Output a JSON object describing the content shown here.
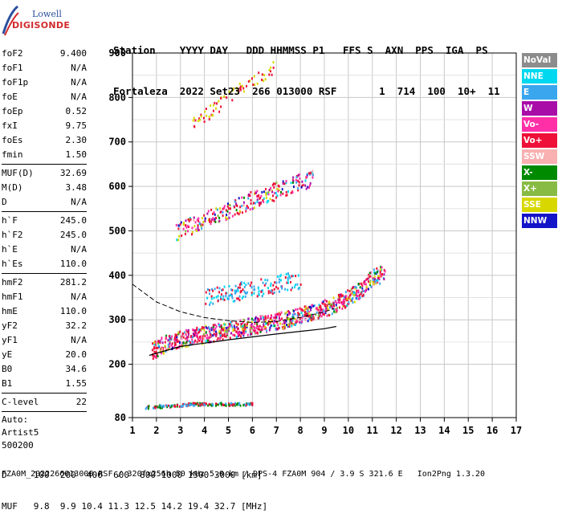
{
  "logo": {
    "line1": "Lowell",
    "line2": "DIGISONDE"
  },
  "header": {
    "line1": "Station    YYYY DAY   DDD HHMMSS P1   FFS S  AXN  PPS  IGA  PS",
    "line2": "Fortaleza  2022 Set23  266 013000 RSF       1  714  100  10+  11"
  },
  "params": [
    {
      "label": "foF2",
      "value": "9.400"
    },
    {
      "label": "foF1",
      "value": "N/A"
    },
    {
      "label": "foF1p",
      "value": "N/A"
    },
    {
      "label": "foE",
      "value": "N/A"
    },
    {
      "label": "foEp",
      "value": "0.52"
    },
    {
      "label": "fxI",
      "value": "9.75"
    },
    {
      "label": "foEs",
      "value": "2.30"
    },
    {
      "label": "fmin",
      "value": "1.50"
    }
  ],
  "params2": [
    {
      "label": "MUF(D)",
      "value": "32.69"
    },
    {
      "label": "M(D)",
      "value": "3.48"
    },
    {
      "label": "D",
      "value": "N/A"
    }
  ],
  "params3": [
    {
      "label": "h`F",
      "value": "245.0"
    },
    {
      "label": "h`F2",
      "value": "245.0"
    },
    {
      "label": "h`E",
      "value": "N/A"
    },
    {
      "label": "h`Es",
      "value": "110.0"
    }
  ],
  "params4": [
    {
      "label": "hmF2",
      "value": "281.2"
    },
    {
      "label": "hmF1",
      "value": "N/A"
    },
    {
      "label": "hmE",
      "value": "110.0"
    },
    {
      "label": "yF2",
      "value": "32.2"
    },
    {
      "label": "yF1",
      "value": "N/A"
    },
    {
      "label": "yE",
      "value": "20.0"
    },
    {
      "label": "B0",
      "value": "34.6"
    },
    {
      "label": "B1",
      "value": "1.55"
    }
  ],
  "params5": [
    {
      "label": "C-level",
      "value": "22"
    }
  ],
  "auto": [
    "Auto:",
    "Artist5",
    "500200"
  ],
  "legend": [
    {
      "label": "NoVal",
      "color": "#8c8c8c"
    },
    {
      "label": "NNE",
      "color": "#00d8f0"
    },
    {
      "label": "E",
      "color": "#3aa6ee"
    },
    {
      "label": "W",
      "color": "#a80da8"
    },
    {
      "label": "Vo-",
      "color": "#ff2fa8"
    },
    {
      "label": "Vo+",
      "color": "#ee1038"
    },
    {
      "label": "SSW",
      "color": "#f8b0b0"
    },
    {
      "label": "X-",
      "color": "#008a00"
    },
    {
      "label": "X+",
      "color": "#88bb44"
    },
    {
      "label": "SSE",
      "color": "#d8d800"
    },
    {
      "label": "NNW",
      "color": "#1414c8"
    }
  ],
  "footer": {
    "line1": "D     100  200  400  600  800 1000 1500 3000 [km]",
    "line2": "MUF   9.8  9.9 10.4 11.3 12.5 14.2 19.4 32.7 [MHz]",
    "line3": "FZA0M_2022266013000.RSF / 320fx256h 50 kHz 5.0 km / DPS-4 FZA0M 904 / 3.9 S 321.6 E   Ion2Png 1.3.20"
  },
  "chart_data": {
    "type": "scatter",
    "xlim": [
      1,
      17
    ],
    "ylim": [
      80,
      900
    ],
    "x_ticks": [
      1,
      2,
      3,
      4,
      5,
      6,
      7,
      8,
      9,
      10,
      11,
      12,
      13,
      14,
      15,
      16,
      17
    ],
    "y_ticks": [
      80,
      200,
      300,
      400,
      500,
      600,
      700,
      800,
      900
    ],
    "grid": true,
    "traces": [
      {
        "name": "F2 trace",
        "points": [
          [
            1.8,
            230
          ],
          [
            2.5,
            250
          ],
          [
            3.5,
            262
          ],
          [
            4.5,
            272
          ],
          [
            5.5,
            282
          ],
          [
            6.5,
            292
          ],
          [
            7.5,
            302
          ],
          [
            8.5,
            318
          ],
          [
            9.3,
            332
          ],
          [
            10.0,
            350
          ],
          [
            10.6,
            372
          ],
          [
            11.0,
            395
          ],
          [
            11.5,
            405
          ]
        ]
      },
      {
        "name": "F2 second hop",
        "points": [
          [
            2.8,
            495
          ],
          [
            4.0,
            525
          ],
          [
            5.5,
            560
          ],
          [
            7.0,
            590
          ],
          [
            8.5,
            620
          ]
        ]
      },
      {
        "name": "F2 third hop",
        "points": [
          [
            3.5,
            740
          ],
          [
            4.5,
            780
          ],
          [
            5.5,
            820
          ],
          [
            6.5,
            850
          ],
          [
            7.0,
            880
          ]
        ]
      },
      {
        "name": "Es trace",
        "points": [
          [
            1.5,
            105
          ],
          [
            2.5,
            108
          ],
          [
            3.5,
            112
          ],
          [
            4.5,
            112
          ],
          [
            5.5,
            112
          ],
          [
            6.0,
            112
          ]
        ]
      },
      {
        "name": "Diffuse echoes",
        "points": [
          [
            4.0,
            350
          ],
          [
            5.0,
            360
          ],
          [
            6.0,
            370
          ],
          [
            7.0,
            380
          ],
          [
            8.0,
            390
          ]
        ]
      }
    ],
    "profile_line": [
      [
        1.0,
        380
      ],
      [
        2.0,
        340
      ],
      [
        3.0,
        318
      ],
      [
        4.0,
        305
      ],
      [
        5.0,
        298
      ],
      [
        6.0,
        294
      ],
      [
        7.0,
        296
      ],
      [
        8.0,
        305
      ],
      [
        9.0,
        318
      ],
      [
        9.4,
        325
      ]
    ],
    "model_line": [
      [
        1.7,
        220
      ],
      [
        3.0,
        240
      ],
      [
        5.0,
        255
      ],
      [
        7.0,
        268
      ],
      [
        9.0,
        280
      ],
      [
        9.5,
        285
      ]
    ]
  }
}
